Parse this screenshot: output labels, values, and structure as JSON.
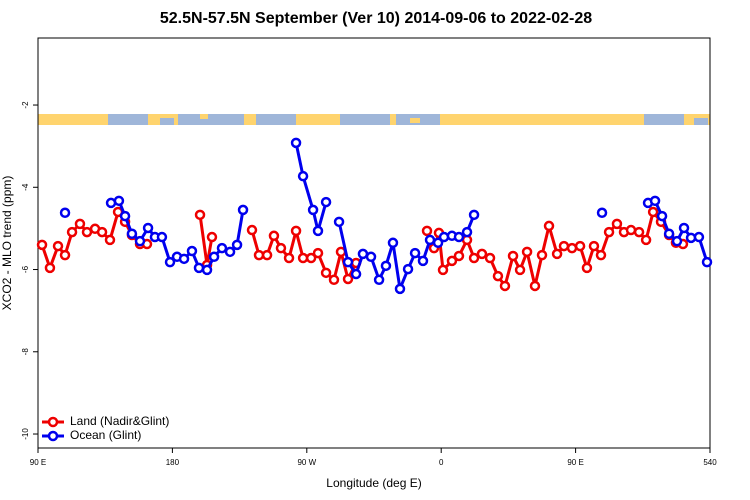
{
  "chart_data": {
    "type": "line",
    "title": "52.5N-57.5N September (Ver 10)   2014-09-06 to 2022-02-28",
    "x_label": "Longitude (deg E)",
    "y_label": "XCO2 - MLO trend (ppm)",
    "xlim": [
      90,
      540
    ],
    "ylim": [
      -10.34,
      -0.37
    ],
    "xticks": [
      {
        "value": 90,
        "label": "90 E"
      },
      180,
      {
        "value": 270,
        "label": "90 W"
      },
      {
        "value": 360,
        "label": "0"
      },
      {
        "value": 450,
        "label": "90 E"
      },
      540
    ],
    "yticks": [
      -2,
      -4,
      -6,
      -8,
      -10
    ],
    "legend": "bottom-left",
    "series": [
      {
        "name": "Land (Nadir&Glint)",
        "color": "#ee0000",
        "x": [
          92.7,
          98.0,
          103.4,
          108.1,
          112.8,
          118.1,
          122.8,
          128.2,
          132.9,
          138.2,
          143.6,
          148.3,
          152.9,
          158.3,
          163.0,
          null,
          198.5,
          203.2,
          206.5,
          null,
          233.3,
          238.0,
          243.4,
          248.0,
          252.7,
          258.1,
          262.8,
          267.5,
          272.9,
          277.5,
          282.9,
          288.2,
          292.9,
          297.6,
          303.0,
          null,
          350.5,
          355.2,
          358.5,
          361.2,
          367.2,
          371.9,
          377.3,
          382.0,
          387.3,
          392.7,
          398.0,
          402.7,
          408.1,
          412.8,
          417.5,
          422.8,
          427.5,
          432.2,
          437.6,
          442.2,
          447.6,
          453.0,
          457.6,
          462.3,
          467.0,
          472.4,
          477.7,
          482.4,
          487.1,
          492.5,
          497.2,
          501.9,
          507.2,
          512.6,
          517.2,
          521.9
        ],
        "values": [
          -5.4,
          -5.96,
          -5.43,
          -5.65,
          -5.09,
          -4.89,
          -5.09,
          -5.01,
          -5.09,
          -5.28,
          -4.6,
          -4.84,
          -5.16,
          -5.38,
          -5.38,
          null,
          -4.67,
          -5.89,
          -5.21,
          null,
          -5.04,
          -5.65,
          -5.65,
          -5.18,
          -5.48,
          -5.72,
          -5.06,
          -5.72,
          -5.72,
          -5.6,
          -6.08,
          -6.25,
          -5.57,
          -6.23,
          -5.84,
          null,
          -5.06,
          -5.48,
          -5.11,
          -6.01,
          -5.79,
          -5.67,
          -5.28,
          -5.72,
          -5.62,
          -5.72,
          -6.16,
          -6.4,
          -5.67,
          -6.01,
          -5.57,
          -6.4,
          -5.65,
          -4.94,
          -5.62,
          -5.43,
          -5.48,
          -5.43,
          -5.96,
          -5.43,
          -5.65,
          -5.09,
          -4.89,
          -5.09,
          -5.04,
          -5.09,
          -5.28,
          -4.6,
          -4.84,
          -5.16,
          -5.35,
          -5.38
        ]
      },
      {
        "name": "Ocean (Glint)",
        "color": "#0000ee",
        "x": [
          108.1,
          null,
          138.9,
          144.2,
          148.3,
          152.9,
          158.3,
          163.7,
          168.3,
          173.0,
          178.4,
          183.1,
          187.8,
          193.1,
          197.8,
          203.2,
          207.9,
          213.2,
          218.6,
          223.3,
          227.3,
          null,
          262.8,
          267.5,
          274.2,
          277.5,
          282.9,
          null,
          291.6,
          297.6,
          303.0,
          307.6,
          313.0,
          318.4,
          323.0,
          327.7,
          332.4,
          337.8,
          342.5,
          347.8,
          352.5,
          357.9,
          361.9,
          367.2,
          371.9,
          377.3,
          382.0,
          null,
          467.7,
          null,
          498.5,
          503.2,
          507.9,
          512.6,
          517.9,
          522.6,
          527.3,
          532.6,
          538.0
        ],
        "values": [
          -4.62,
          null,
          -4.38,
          -4.33,
          -4.7,
          -5.13,
          -5.31,
          -4.99,
          -5.21,
          -5.21,
          -5.82,
          -5.69,
          -5.74,
          -5.55,
          -5.96,
          -6.01,
          -5.69,
          -5.48,
          -5.57,
          -5.4,
          -4.55,
          null,
          -2.92,
          -3.73,
          -4.55,
          -5.06,
          -4.36,
          null,
          -4.84,
          -5.82,
          -6.11,
          -5.62,
          -5.69,
          -6.25,
          -5.91,
          -5.35,
          -6.47,
          -5.99,
          -5.6,
          -5.79,
          -5.28,
          -5.35,
          -5.21,
          -5.18,
          -5.21,
          -5.09,
          -4.67,
          null,
          -4.62,
          null,
          -4.38,
          -4.33,
          -4.7,
          -5.13,
          -5.31,
          -4.99,
          -5.23,
          -5.21,
          -5.82
        ]
      }
    ]
  }
}
